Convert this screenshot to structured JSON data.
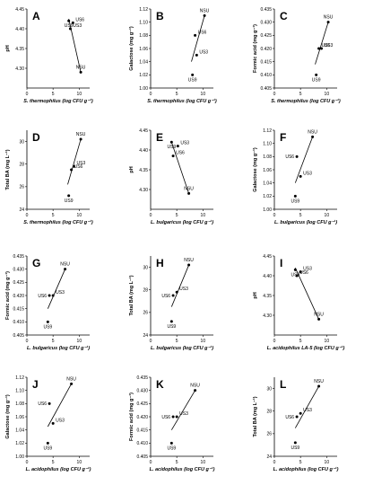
{
  "chart_data": [
    {
      "letter": "A",
      "type": "scatter",
      "ylabel": "pH",
      "xlabel": "S. thermophilus (log CFU g⁻¹)",
      "xlim": [
        0,
        12
      ],
      "ylim": [
        4.25,
        4.45
      ],
      "xticks": [
        "0",
        "5",
        "10"
      ],
      "yticks": [
        "4.30",
        "4.35",
        "4.40",
        "4.45"
      ],
      "points": [
        {
          "label": "US9",
          "x": 8.0,
          "y": 4.42
        },
        {
          "label": "US6",
          "x": 8.8,
          "y": 4.415
        },
        {
          "label": "US3",
          "x": 8.3,
          "y": 4.4
        },
        {
          "label": "NSU",
          "x": 10.3,
          "y": 4.29
        }
      ],
      "trendline": [
        [
          8.0,
          4.425
        ],
        [
          10.3,
          4.29
        ]
      ]
    },
    {
      "letter": "B",
      "type": "scatter",
      "ylabel": "Galactose (mg g⁻¹)",
      "xlabel": "S. thermophilus (log CFU g⁻¹)",
      "xlim": [
        0,
        12
      ],
      "ylim": [
        1.0,
        1.12
      ],
      "xticks": [
        "0",
        "5",
        "10"
      ],
      "yticks": [
        "1.00",
        "1.02",
        "1.04",
        "1.06",
        "1.08",
        "1.10",
        "1.12"
      ],
      "points": [
        {
          "label": "NSU",
          "x": 10.3,
          "y": 1.11
        },
        {
          "label": "US6",
          "x": 8.5,
          "y": 1.08
        },
        {
          "label": "US3",
          "x": 8.8,
          "y": 1.05
        },
        {
          "label": "US9",
          "x": 8.0,
          "y": 1.02
        }
      ],
      "trendline": [
        [
          7.8,
          1.04
        ],
        [
          10.3,
          1.11
        ]
      ]
    },
    {
      "letter": "C",
      "type": "scatter",
      "ylabel": "Formic acid (mg g⁻¹)",
      "xlabel": "S. thermophilus (log CFU g⁻¹)",
      "xlim": [
        0,
        12
      ],
      "ylim": [
        0.405,
        0.435
      ],
      "xticks": [
        "0",
        "5",
        "10"
      ],
      "yticks": [
        "0.405",
        "0.410",
        "0.415",
        "0.420",
        "0.425",
        "0.430",
        "0.435"
      ],
      "points": [
        {
          "label": "NSU",
          "x": 10.3,
          "y": 0.43
        },
        {
          "label": "US6",
          "x": 8.5,
          "y": 0.42
        },
        {
          "label": "US3",
          "x": 9.0,
          "y": 0.42
        },
        {
          "label": "US9",
          "x": 8.0,
          "y": 0.41
        }
      ],
      "trendline": [
        [
          7.8,
          0.414
        ],
        [
          10.3,
          0.43
        ]
      ]
    },
    {
      "letter": "D",
      "type": "scatter",
      "ylabel": "Total BA (mg L⁻¹)",
      "xlabel": "S. thermophilus (log CFU g⁻¹)",
      "xlim": [
        0,
        12
      ],
      "ylim": [
        24,
        31
      ],
      "xticks": [
        "0",
        "5",
        "10"
      ],
      "yticks": [
        "24",
        "26",
        "28",
        "30"
      ],
      "points": [
        {
          "label": "NSU",
          "x": 10.3,
          "y": 30.2
        },
        {
          "label": "US3",
          "x": 9.0,
          "y": 27.8
        },
        {
          "label": "US6",
          "x": 8.5,
          "y": 27.5
        },
        {
          "label": "US9",
          "x": 8.0,
          "y": 25.2
        }
      ],
      "trendline": [
        [
          7.8,
          26.2
        ],
        [
          10.3,
          30.2
        ]
      ]
    },
    {
      "letter": "E",
      "type": "scatter",
      "ylabel": "pH",
      "xlabel": "L. bulgaricus (log CFU g⁻¹)",
      "xlim": [
        0,
        12
      ],
      "ylim": [
        4.25,
        4.45
      ],
      "xticks": [
        "0",
        "5",
        "10"
      ],
      "yticks": [
        "4.30",
        "4.35",
        "4.40",
        "4.45"
      ],
      "points": [
        {
          "label": "US9",
          "x": 4.0,
          "y": 4.42
        },
        {
          "label": "US3",
          "x": 5.2,
          "y": 4.41
        },
        {
          "label": "US6",
          "x": 4.3,
          "y": 4.385
        },
        {
          "label": "NSU",
          "x": 7.3,
          "y": 4.29
        }
      ],
      "trendline": [
        [
          4.0,
          4.42
        ],
        [
          7.3,
          4.29
        ]
      ]
    },
    {
      "letter": "F",
      "type": "scatter",
      "ylabel": "Galactose (mg g⁻¹)",
      "xlabel": "L. bulgaricus (log CFU g⁻¹)",
      "xlim": [
        0,
        12
      ],
      "ylim": [
        1.0,
        1.12
      ],
      "xticks": [
        "0",
        "5",
        "10"
      ],
      "yticks": [
        "1.00",
        "1.02",
        "1.04",
        "1.06",
        "1.08",
        "1.10",
        "1.12"
      ],
      "points": [
        {
          "label": "NSU",
          "x": 7.3,
          "y": 1.11
        },
        {
          "label": "US6",
          "x": 4.3,
          "y": 1.08
        },
        {
          "label": "US3",
          "x": 5.0,
          "y": 1.05
        },
        {
          "label": "US9",
          "x": 4.0,
          "y": 1.02
        }
      ],
      "trendline": [
        [
          4.0,
          1.04
        ],
        [
          7.3,
          1.11
        ]
      ]
    },
    {
      "letter": "G",
      "type": "scatter",
      "ylabel": "Formic acid (mg g⁻¹)",
      "xlabel": "L. bulgaricus (log CFU g⁻¹)",
      "xlim": [
        0,
        12
      ],
      "ylim": [
        0.405,
        0.435
      ],
      "xticks": [
        "0",
        "5",
        "10"
      ],
      "yticks": [
        "0.405",
        "0.410",
        "0.415",
        "0.420",
        "0.425",
        "0.430",
        "0.435"
      ],
      "points": [
        {
          "label": "NSU",
          "x": 7.3,
          "y": 0.43
        },
        {
          "label": "US6",
          "x": 4.3,
          "y": 0.42
        },
        {
          "label": "US3",
          "x": 5.0,
          "y": 0.42
        },
        {
          "label": "US9",
          "x": 4.0,
          "y": 0.41
        }
      ],
      "trendline": [
        [
          4.0,
          0.415
        ],
        [
          7.3,
          0.43
        ]
      ]
    },
    {
      "letter": "H",
      "type": "scatter",
      "ylabel": "Total BA (mg L⁻¹)",
      "xlabel": "L. bulgaricus (log CFU g⁻¹)",
      "xlim": [
        0,
        12
      ],
      "ylim": [
        24,
        31
      ],
      "xticks": [
        "0",
        "5",
        "10"
      ],
      "yticks": [
        "24",
        "26",
        "28",
        "30"
      ],
      "points": [
        {
          "label": "NSU",
          "x": 7.3,
          "y": 30.2
        },
        {
          "label": "US3",
          "x": 5.0,
          "y": 27.8
        },
        {
          "label": "US6",
          "x": 4.3,
          "y": 27.5
        },
        {
          "label": "US9",
          "x": 4.0,
          "y": 25.2
        }
      ],
      "trendline": [
        [
          4.0,
          26.5
        ],
        [
          7.3,
          30.2
        ]
      ]
    },
    {
      "letter": "I",
      "type": "scatter",
      "ylabel": "pH",
      "xlabel": "L. acidophilus LA-5 (log CFU g⁻¹)",
      "xlim": [
        0,
        12
      ],
      "ylim": [
        4.25,
        4.45
      ],
      "xticks": [
        "0",
        "5",
        "10"
      ],
      "yticks": [
        "4.30",
        "4.35",
        "4.40",
        "4.45"
      ],
      "points": [
        {
          "label": "US9",
          "x": 4.0,
          "y": 4.415
        },
        {
          "label": "US3",
          "x": 5.0,
          "y": 4.41
        },
        {
          "label": "US6",
          "x": 4.3,
          "y": 4.4
        },
        {
          "label": "NSU",
          "x": 8.5,
          "y": 4.29
        }
      ],
      "trendline": [
        [
          4.0,
          4.42
        ],
        [
          8.5,
          4.29
        ]
      ]
    },
    {
      "letter": "J",
      "type": "scatter",
      "ylabel": "Galactose (mg g⁻¹)",
      "xlabel": "L. acidophilus (log CFU g⁻¹)",
      "xlim": [
        0,
        12
      ],
      "ylim": [
        1.0,
        1.12
      ],
      "xticks": [
        "0",
        "5",
        "10"
      ],
      "yticks": [
        "1.00",
        "1.02",
        "1.04",
        "1.06",
        "1.08",
        "1.10",
        "1.12"
      ],
      "points": [
        {
          "label": "NSU",
          "x": 8.5,
          "y": 1.11
        },
        {
          "label": "US6",
          "x": 4.3,
          "y": 1.08
        },
        {
          "label": "US3",
          "x": 5.0,
          "y": 1.05
        },
        {
          "label": "US9",
          "x": 4.0,
          "y": 1.02
        }
      ],
      "trendline": [
        [
          4.0,
          1.045
        ],
        [
          8.5,
          1.11
        ]
      ]
    },
    {
      "letter": "K",
      "type": "scatter",
      "ylabel": "Formic acid (mg g⁻¹)",
      "xlabel": "L. acidophilus (log CFU g⁻¹)",
      "xlim": [
        0,
        12
      ],
      "ylim": [
        0.405,
        0.435
      ],
      "xticks": [
        "0",
        "5",
        "10"
      ],
      "yticks": [
        "0.405",
        "0.410",
        "0.415",
        "0.420",
        "0.425",
        "0.430",
        "0.435"
      ],
      "points": [
        {
          "label": "NSU",
          "x": 8.5,
          "y": 0.43
        },
        {
          "label": "US6",
          "x": 4.3,
          "y": 0.42
        },
        {
          "label": "US3",
          "x": 5.0,
          "y": 0.42
        },
        {
          "label": "US9",
          "x": 4.0,
          "y": 0.41
        }
      ],
      "trendline": [
        [
          4.0,
          0.415
        ],
        [
          8.5,
          0.43
        ]
      ]
    },
    {
      "letter": "L",
      "type": "scatter",
      "ylabel": "Total BA (mg L⁻¹)",
      "xlabel": "L. acidophilus (log CFU g⁻¹)",
      "xlim": [
        0,
        12
      ],
      "ylim": [
        24,
        31
      ],
      "xticks": [
        "0",
        "5",
        "10"
      ],
      "yticks": [
        "24",
        "26",
        "28",
        "30"
      ],
      "points": [
        {
          "label": "NSU",
          "x": 8.5,
          "y": 30.2
        },
        {
          "label": "US3",
          "x": 5.0,
          "y": 27.8
        },
        {
          "label": "US6",
          "x": 4.3,
          "y": 27.5
        },
        {
          "label": "US9",
          "x": 4.0,
          "y": 25.2
        }
      ],
      "trendline": [
        [
          4.0,
          26.5
        ],
        [
          8.5,
          30.2
        ]
      ]
    }
  ]
}
